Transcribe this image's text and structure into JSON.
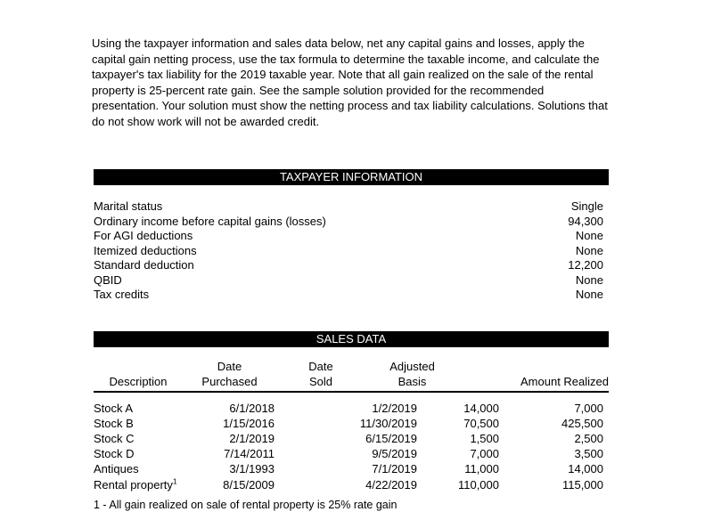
{
  "instructions": "Using the taxpayer information and sales data below, net any capital gains and losses, apply the capital gain netting process, use the tax formula to determine the taxable income, and calculate the taxpayer's tax liability for the 2019 taxable year. Note that all gain realized on the sale of the rental property is 25-percent rate gain. See the sample solution provided for the recommended presentation. Your solution must show the netting process and tax liability calculations. Solutions that do not show work will not be awarded credit.",
  "taxpayer_information": {
    "title": "TAXPAYER INFORMATION",
    "rows": [
      {
        "label": "Marital status",
        "value": "Single"
      },
      {
        "label": "Ordinary income before capital gains (losses)",
        "value": "94,300"
      },
      {
        "label": "For AGI deductions",
        "value": "None"
      },
      {
        "label": "Itemized deductions",
        "value": "None"
      },
      {
        "label": "Standard deduction",
        "value": "12,200"
      },
      {
        "label": "QBID",
        "value": "None"
      },
      {
        "label": "Tax credits",
        "value": "None"
      }
    ]
  },
  "sales_data": {
    "title": "SALES DATA",
    "columns": [
      {
        "line1": "",
        "line2": "Description"
      },
      {
        "line1": "Date",
        "line2": "Purchased"
      },
      {
        "line1": "Date",
        "line2": "Sold"
      },
      {
        "line1": "Adjusted",
        "line2": "Basis"
      },
      {
        "line1": "",
        "line2": "Amount Realized"
      }
    ],
    "rows": [
      {
        "description": "Stock A",
        "superscript": "",
        "date_purchased": "6/1/2018",
        "date_sold": "1/2/2019",
        "adjusted_basis": "14,000",
        "amount_realized": "7,000"
      },
      {
        "description": "Stock B",
        "superscript": "",
        "date_purchased": "1/15/2016",
        "date_sold": "11/30/2019",
        "adjusted_basis": "70,500",
        "amount_realized": "425,500"
      },
      {
        "description": "Stock C",
        "superscript": "",
        "date_purchased": "2/1/2019",
        "date_sold": "6/15/2019",
        "adjusted_basis": "1,500",
        "amount_realized": "2,500"
      },
      {
        "description": "Stock D",
        "superscript": "",
        "date_purchased": "7/14/2011",
        "date_sold": "9/5/2019",
        "adjusted_basis": "7,000",
        "amount_realized": "3,500"
      },
      {
        "description": "Antiques",
        "superscript": "",
        "date_purchased": "3/1/1993",
        "date_sold": "7/1/2019",
        "adjusted_basis": "11,000",
        "amount_realized": "14,000"
      },
      {
        "description": "Rental property",
        "superscript": "1",
        "date_purchased": "8/15/2009",
        "date_sold": "4/22/2019",
        "adjusted_basis": "110,000",
        "amount_realized": "115,000"
      }
    ],
    "footnote": "1 - All gain realized on sale of rental property is 25% rate gain"
  },
  "colors": {
    "section_bar_background": "#000000",
    "section_bar_text": "#ffffff",
    "body_text": "#000000",
    "page_background": "#ffffff"
  }
}
